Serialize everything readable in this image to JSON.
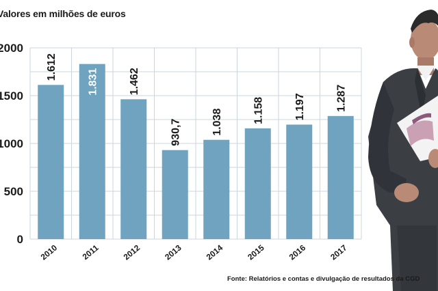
{
  "chart_data": {
    "type": "bar",
    "title": "Valores em milhões de euros",
    "categories": [
      "2010",
      "2011",
      "2012",
      "2013",
      "2014",
      "2015",
      "2016",
      "2017"
    ],
    "values": [
      1612,
      1831,
      1462,
      930.7,
      1038,
      1158,
      1197,
      1287
    ],
    "data_labels": [
      "1.612",
      "1.831",
      "1.462",
      "930,7",
      "1.038",
      "1.158",
      "1.197",
      "1.287"
    ],
    "y_ticks": [
      "0",
      "500",
      "1000",
      "1500",
      "2000"
    ],
    "ylim": [
      0,
      2000
    ],
    "grid": true,
    "bar_color": "#6fa3bf",
    "xlabel": "",
    "ylabel": ""
  },
  "source": "Fonte: Relatórios e contas e divulgação de resultados da CGD",
  "photo": {
    "icon": "person-in-suit-holding-report"
  },
  "colors": {
    "grid": "#c9d6dd",
    "bar": "#6fa3bf",
    "text": "#1a1a1a"
  }
}
